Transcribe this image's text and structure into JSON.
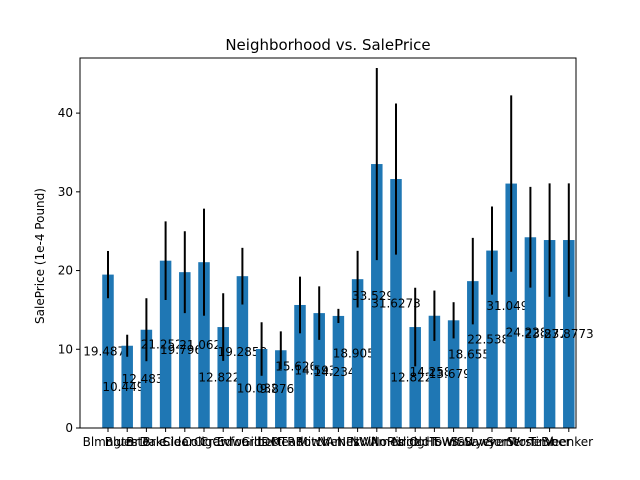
{
  "chart_data": {
    "type": "bar",
    "title": "Neighborhood vs. SalePrice",
    "xlabel": "",
    "ylabel": "SalePrice (1e-4 Pound)",
    "ylim": [
      0,
      47
    ],
    "yticks": [
      0,
      10,
      20,
      30,
      40
    ],
    "grid": false,
    "bar_color": "#1f77b4",
    "error_color": "#000000",
    "categories": [
      "Blmngtn",
      "Blueste",
      "BrDale",
      "BrkSide",
      "ClearCr",
      "CollgCr",
      "Crawfor",
      "Edwards",
      "Gilbert",
      "IDOTRR",
      "MeadowV",
      "Mitchel",
      "NAmes",
      "NPkVill",
      "NWAmes",
      "NoRidge",
      "NridgHt",
      "OldTown",
      "SWISU",
      "Sawyer",
      "SawyerW",
      "Somerst",
      "StoneBr",
      "Timber",
      "Veenker"
    ],
    "values": [
      19.4871,
      10.4494,
      12.4834,
      21.2524,
      19.7966,
      21.0627,
      12.8221,
      19.2853,
      10.0324,
      9.8765,
      15.6269,
      14.5937,
      14.2347,
      18.9051,
      33.5298,
      31.6273,
      12.8226,
      14.2587,
      13.6795,
      18.6558,
      22.5381,
      31.0496,
      24.2283,
      23.8773,
      23.8773
    ],
    "value_labels": [
      "19.4871",
      "10.4494",
      "12.4834",
      "21.2524",
      "19.7966",
      "21.0627",
      "12.8221",
      "19.2853",
      "10.0324",
      "9.8765",
      "15.6269",
      "14.5937",
      "14.2347",
      "18.9051",
      "33.5298",
      "31.6273",
      "12.8226",
      "14.2587",
      "13.6795",
      "18.6558",
      "22.5381",
      "31.0496",
      "24.2283",
      "23.8773",
      "23.8773"
    ],
    "error": [
      3.0,
      1.4,
      4.0,
      5.0,
      5.2,
      6.8,
      4.3,
      3.6,
      3.4,
      2.4,
      3.6,
      3.4,
      0.9,
      3.6,
      12.2,
      9.6,
      5.0,
      3.2,
      2.3,
      5.5,
      5.6,
      11.2,
      6.4,
      7.2,
      7.2
    ]
  }
}
